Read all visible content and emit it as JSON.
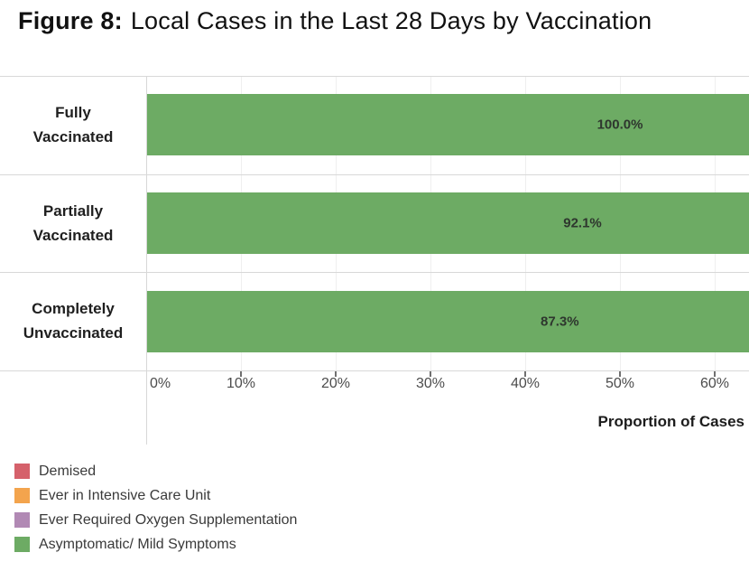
{
  "title": {
    "figure_label": "Figure 8:",
    "text": "Local Cases in the Last 28 Days by Vaccination"
  },
  "chart_data": {
    "type": "bar",
    "orientation": "horizontal",
    "stacked": true,
    "title": "Figure 8: Local Cases in the Last 28 Days by Vaccination",
    "categories": [
      "Fully Vaccinated",
      "Partially Vaccinated",
      "Completely Unvaccinated"
    ],
    "series": [
      {
        "name": "Asymptomatic/ Mild Symptoms",
        "color": "#6dab64",
        "values": [
          100.0,
          92.1,
          87.3
        ],
        "data_labels": [
          "100.0%",
          "92.1%",
          "87.3%"
        ]
      }
    ],
    "xlabel": "Proportion of Cases",
    "x_ticks": [
      0,
      10,
      20,
      30,
      40,
      50,
      60
    ],
    "x_tick_labels": [
      "0%",
      "10%",
      "20%",
      "30%",
      "40%",
      "50%",
      "60%"
    ],
    "xlim_visible": [
      0,
      63.6
    ],
    "grid": "vertical",
    "legend_position": "bottom-left",
    "legend_entries": [
      "Demised",
      "Ever in Intensive Care Unit",
      "Ever Required Oxygen Supplementation",
      "Asymptomatic/ Mild Symptoms"
    ]
  },
  "legend": {
    "items": [
      {
        "label": "Demised",
        "color": "#d5616b"
      },
      {
        "label": "Ever in Intensive Care Unit",
        "color": "#f3a44d"
      },
      {
        "label": "Ever Required Oxygen Supplementation",
        "color": "#b189b4"
      },
      {
        "label": "Asymptomatic/ Mild Symptoms",
        "color": "#6dab64"
      }
    ]
  }
}
